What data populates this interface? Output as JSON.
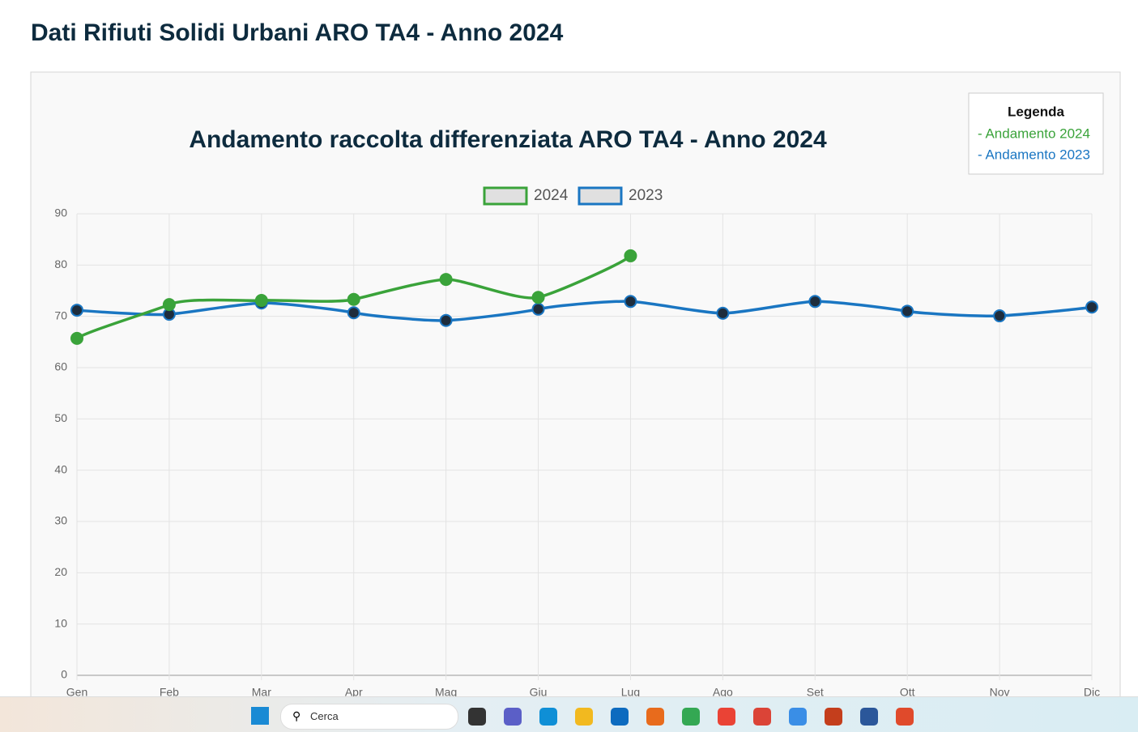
{
  "page_title": "Dati Rifiuti Solidi Urbani ARO TA4 - Anno 2024",
  "legend_box": {
    "title": "Legenda",
    "items": [
      "- Andamento 2024",
      "- Andamento 2023"
    ]
  },
  "taskbar": {
    "search": "Cerca"
  },
  "chart_data": {
    "type": "line",
    "title": "Andamento raccolta differenziata ARO TA4 - Anno 2024",
    "categories": [
      "Gen",
      "Feb",
      "Mar",
      "Apr",
      "Mag",
      "Giu",
      "Lug",
      "Ago",
      "Set",
      "Ott",
      "Nov",
      "Dic"
    ],
    "series": [
      {
        "name": "2024",
        "color": "#3aa33a",
        "values": [
          65.7,
          72.3,
          73.1,
          73.3,
          77.2,
          73.7,
          81.8,
          null,
          null,
          null,
          null,
          null
        ]
      },
      {
        "name": "2023",
        "color": "#1a76c2",
        "values": [
          71.2,
          70.4,
          72.6,
          70.7,
          69.2,
          71.4,
          72.9,
          70.6,
          72.9,
          71.0,
          70.1,
          71.8
        ]
      }
    ],
    "ylim": [
      0,
      90
    ],
    "yticks": [
      0,
      10,
      20,
      30,
      40,
      50,
      60,
      70,
      80,
      90
    ],
    "grid": true,
    "legend": "top"
  }
}
